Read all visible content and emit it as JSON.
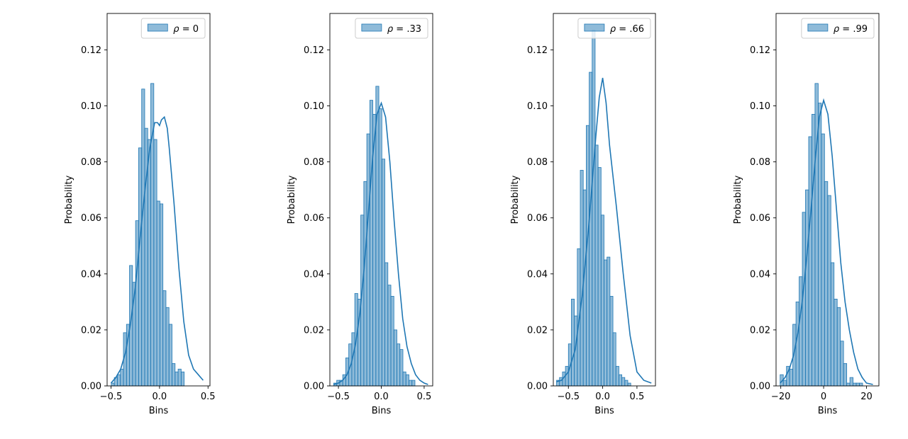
{
  "colors": {
    "bar_fill": "#1f77b4",
    "bar_fill_opacity": 0.5,
    "bar_edge": "#1f77b4",
    "kde_line": "#1f77b4",
    "axis": "#000000"
  },
  "chart_data": [
    {
      "type": "bar",
      "title": "",
      "xlabel": "Bins",
      "ylabel": "Probability",
      "legend": "ρ = 0",
      "legend_position": "top-right",
      "grid": false,
      "xlim": [
        -0.54,
        0.52
      ],
      "ylim": [
        0,
        0.133
      ],
      "x_ticks": [
        -0.5,
        0.0,
        0.5
      ],
      "x_tick_labels": [
        "−0.5",
        "0.0",
        "0.5"
      ],
      "y_ticks": [
        0,
        0.02,
        0.04,
        0.06,
        0.08,
        0.1,
        0.12
      ],
      "y_tick_labels": [
        "0.00",
        "0.02",
        "0.04",
        "0.06",
        "0.08",
        "0.10",
        "0.12"
      ],
      "bin_start": -0.497,
      "bin_width": 0.0313,
      "values": [
        0.001,
        0.003,
        0.004,
        0.006,
        0.019,
        0.022,
        0.043,
        0.037,
        0.059,
        0.085,
        0.106,
        0.092,
        0.088,
        0.108,
        0.088,
        0.066,
        0.065,
        0.034,
        0.028,
        0.022,
        0.008,
        0.005,
        0.006,
        0.005
      ],
      "kde": {
        "x": [
          -0.5,
          -0.45,
          -0.4,
          -0.35,
          -0.3,
          -0.25,
          -0.2,
          -0.15,
          -0.1,
          -0.05,
          -0.02,
          0.0,
          0.02,
          0.05,
          0.08,
          0.1,
          0.15,
          0.2,
          0.25,
          0.3,
          0.35,
          0.4,
          0.45
        ],
        "y": [
          0.001,
          0.003,
          0.006,
          0.012,
          0.022,
          0.035,
          0.053,
          0.07,
          0.085,
          0.094,
          0.094,
          0.093,
          0.095,
          0.096,
          0.092,
          0.085,
          0.065,
          0.042,
          0.023,
          0.011,
          0.006,
          0.004,
          0.002
        ]
      }
    },
    {
      "type": "bar",
      "title": "",
      "xlabel": "Bins",
      "ylabel": "Probability",
      "legend": "ρ = .33",
      "legend_position": "top-right",
      "grid": false,
      "xlim": [
        -0.6,
        0.6
      ],
      "ylim": [
        0,
        0.133
      ],
      "x_ticks": [
        -0.5,
        0.0,
        0.5
      ],
      "x_tick_labels": [
        "−0.5",
        "0.0",
        "0.5"
      ],
      "y_ticks": [
        0,
        0.02,
        0.04,
        0.06,
        0.08,
        0.1,
        0.12
      ],
      "y_tick_labels": [
        "0.00",
        "0.02",
        "0.04",
        "0.06",
        "0.08",
        "0.10",
        "0.12"
      ],
      "bin_start": -0.555,
      "bin_width": 0.0351,
      "values": [
        0.001,
        0.002,
        0.002,
        0.004,
        0.01,
        0.015,
        0.019,
        0.033,
        0.031,
        0.061,
        0.073,
        0.09,
        0.102,
        0.097,
        0.107,
        0.099,
        0.081,
        0.044,
        0.036,
        0.032,
        0.02,
        0.015,
        0.013,
        0.005,
        0.004,
        0.002,
        0.002
      ],
      "kde": {
        "x": [
          -0.555,
          -0.5,
          -0.45,
          -0.4,
          -0.35,
          -0.3,
          -0.25,
          -0.2,
          -0.15,
          -0.1,
          -0.05,
          0.0,
          0.05,
          0.1,
          0.15,
          0.2,
          0.25,
          0.3,
          0.35,
          0.4,
          0.45,
          0.5,
          0.545
        ],
        "y": [
          0.0005,
          0.001,
          0.002,
          0.004,
          0.008,
          0.015,
          0.026,
          0.042,
          0.062,
          0.082,
          0.097,
          0.101,
          0.096,
          0.08,
          0.059,
          0.04,
          0.024,
          0.014,
          0.008,
          0.004,
          0.002,
          0.001,
          0.0005
        ]
      }
    },
    {
      "type": "bar",
      "title": "",
      "xlabel": "Bins",
      "ylabel": "Probability",
      "legend": "ρ = .66",
      "legend_position": "top-right",
      "grid": false,
      "xlim": [
        -0.72,
        0.77
      ],
      "ylim": [
        0,
        0.133
      ],
      "x_ticks": [
        -0.5,
        0.0,
        0.5
      ],
      "x_tick_labels": [
        "−0.5",
        "0.0",
        "0.5"
      ],
      "y_ticks": [
        0,
        0.02,
        0.04,
        0.06,
        0.08,
        0.1,
        0.12
      ],
      "y_tick_labels": [
        "0.00",
        "0.02",
        "0.04",
        "0.06",
        "0.08",
        "0.10",
        "0.12"
      ],
      "bin_start": -0.673,
      "bin_width": 0.0433,
      "values": [
        0.002,
        0.003,
        0.005,
        0.007,
        0.015,
        0.031,
        0.025,
        0.049,
        0.077,
        0.07,
        0.093,
        0.112,
        0.127,
        0.086,
        0.078,
        0.061,
        0.045,
        0.046,
        0.032,
        0.019,
        0.007,
        0.004,
        0.003,
        0.002,
        0.001
      ],
      "kde": {
        "x": [
          -0.673,
          -0.6,
          -0.5,
          -0.4,
          -0.3,
          -0.2,
          -0.1,
          -0.05,
          0.0,
          0.05,
          0.1,
          0.2,
          0.3,
          0.4,
          0.5,
          0.6,
          0.71
        ],
        "y": [
          0.0015,
          0.002,
          0.005,
          0.013,
          0.032,
          0.058,
          0.089,
          0.103,
          0.11,
          0.101,
          0.086,
          0.064,
          0.04,
          0.018,
          0.005,
          0.002,
          0.001
        ]
      }
    },
    {
      "type": "bar",
      "title": "",
      "xlabel": "Bins",
      "ylabel": "Probability",
      "legend": "ρ = .99",
      "legend_position": "top-right",
      "grid": false,
      "xlim": [
        -22.2,
        25.8
      ],
      "ylim": [
        0,
        0.133
      ],
      "x_ticks": [
        -20,
        0,
        20
      ],
      "x_tick_labels": [
        "−20",
        "0",
        "20"
      ],
      "y_ticks": [
        0,
        0.02,
        0.04,
        0.06,
        0.08,
        0.1,
        0.12
      ],
      "y_tick_labels": [
        "0.00",
        "0.02",
        "0.04",
        "0.06",
        "0.08",
        "0.10",
        "0.12"
      ],
      "bin_start": -20.3,
      "bin_width": 1.48,
      "values": [
        0.004,
        0.002,
        0.007,
        0.006,
        0.022,
        0.03,
        0.039,
        0.062,
        0.07,
        0.089,
        0.097,
        0.108,
        0.101,
        0.09,
        0.073,
        0.068,
        0.044,
        0.031,
        0.028,
        0.016,
        0.008,
        0.001,
        0.003,
        0.001,
        0.001,
        0.001
      ],
      "kde": {
        "x": [
          -20.3,
          -18,
          -16,
          -14,
          -12,
          -10,
          -8,
          -6,
          -4,
          -2,
          0,
          2,
          4,
          6,
          8,
          10,
          12,
          14,
          16,
          18,
          20,
          23
        ],
        "y": [
          0.001,
          0.003,
          0.006,
          0.011,
          0.019,
          0.03,
          0.045,
          0.062,
          0.08,
          0.096,
          0.102,
          0.097,
          0.082,
          0.063,
          0.044,
          0.03,
          0.02,
          0.012,
          0.006,
          0.003,
          0.001,
          0.0005
        ]
      }
    }
  ]
}
